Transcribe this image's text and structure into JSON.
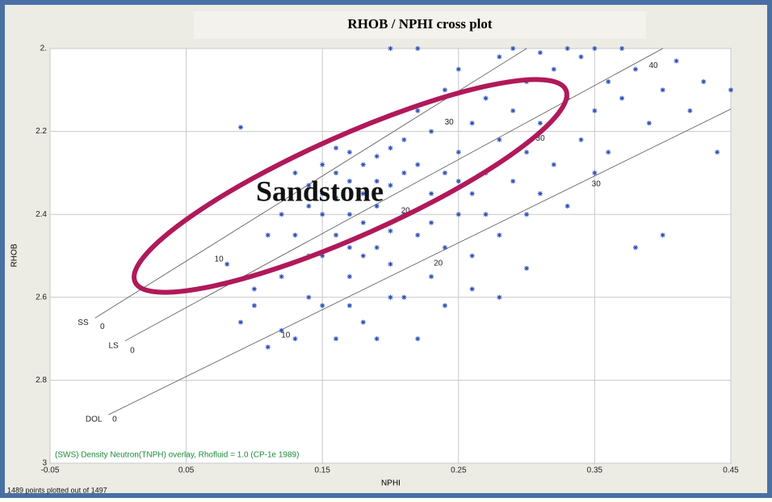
{
  "chart_data": {
    "type": "scatter",
    "title": "RHOB / NPHI cross plot",
    "x_label": "NPHI",
    "y_label": "RHOB",
    "xlim": [
      -0.05,
      0.45
    ],
    "xticks": [
      -0.05,
      0.05,
      0.15,
      0.25,
      0.35,
      0.45
    ],
    "ylim": [
      2,
      3
    ],
    "y_inverted": true,
    "yticks": [
      {
        "value": 2,
        "label": "2."
      },
      2.2,
      2.4,
      2.6,
      2.8,
      3
    ],
    "grid": true,
    "color": "#2b4fb8",
    "x": [
      0.09,
      0.1,
      0.11,
      0.12,
      0.13,
      0.13,
      0.14,
      0.14,
      0.15,
      0.15,
      0.15,
      0.16,
      0.16,
      0.16,
      0.17,
      0.17,
      0.17,
      0.17,
      0.18,
      0.18,
      0.18,
      0.18,
      0.19,
      0.19,
      0.19,
      0.2,
      0.2,
      0.2,
      0.21,
      0.21,
      0.21,
      0.22,
      0.22,
      0.22,
      0.23,
      0.23,
      0.23,
      0.24,
      0.24,
      0.24,
      0.25,
      0.25,
      0.25,
      0.26,
      0.26,
      0.26,
      0.27,
      0.27,
      0.28,
      0.28,
      0.28,
      0.29,
      0.29,
      0.3,
      0.3,
      0.3,
      0.31,
      0.31,
      0.32,
      0.32,
      0.33,
      0.33,
      0.34,
      0.34,
      0.35,
      0.35,
      0.36,
      0.36,
      0.37,
      0.38,
      0.38,
      0.39,
      0.4,
      0.4,
      0.41,
      0.42,
      0.43,
      0.44,
      0.45,
      0.08,
      0.09,
      0.1,
      0.11,
      0.12,
      0.13,
      0.14,
      0.15,
      0.16,
      0.17,
      0.19,
      0.2,
      0.22,
      0.24,
      0.26,
      0.28,
      0.3,
      0.12,
      0.14,
      0.16,
      0.18,
      0.2,
      0.21,
      0.19,
      0.17,
      0.15,
      0.23,
      0.25,
      0.27,
      0.29,
      0.31,
      0.33,
      0.22,
      0.2,
      0.35,
      0.37
    ],
    "values": [
      2.19,
      2.62,
      2.72,
      2.55,
      2.45,
      2.7,
      2.33,
      2.5,
      2.28,
      2.4,
      2.62,
      2.3,
      2.36,
      2.45,
      2.25,
      2.32,
      2.4,
      2.55,
      2.28,
      2.35,
      2.42,
      2.66,
      2.26,
      2.38,
      2.48,
      2.24,
      2.33,
      2.52,
      2.3,
      2.4,
      2.6,
      2.15,
      2.28,
      2.45,
      2.2,
      2.35,
      2.55,
      2.1,
      2.3,
      2.48,
      2.05,
      2.25,
      2.4,
      2.18,
      2.35,
      2.58,
      2.12,
      2.3,
      2.02,
      2.22,
      2.45,
      2.15,
      2.32,
      2.08,
      2.25,
      2.4,
      2.18,
      2.35,
      2.05,
      2.28,
      2.12,
      2.38,
      2.02,
      2.22,
      2.15,
      2.3,
      2.08,
      2.25,
      2.12,
      2.05,
      2.48,
      2.18,
      2.1,
      2.45,
      2.03,
      2.15,
      2.08,
      2.25,
      2.1,
      2.52,
      2.66,
      2.58,
      2.45,
      2.68,
      2.3,
      2.6,
      2.5,
      2.7,
      2.62,
      2.7,
      2.6,
      2.7,
      2.62,
      2.5,
      2.6,
      2.53,
      2.4,
      2.38,
      2.24,
      2.5,
      2.44,
      2.22,
      2.32,
      2.48,
      2.35,
      2.42,
      2.32,
      2.4,
      2.0,
      2.01,
      2.0,
      2.0,
      2.0,
      2.0,
      2.0
    ],
    "overlay_color": "#555555",
    "overlays": [
      {
        "name": "SS",
        "x": [
          -0.017,
          0.3
        ],
        "y": [
          2.65,
          2.0
        ],
        "porosity": [
          {
            "value": 0,
            "x": -0.015,
            "y": 2.66
          },
          {
            "value": 10,
            "x": 0.069,
            "y": 2.497
          },
          {
            "value": 30,
            "x": 0.238,
            "y": 2.166
          }
        ]
      },
      {
        "name": "LS",
        "x": [
          0.005,
          0.4
        ],
        "y": [
          2.705,
          2.0
        ],
        "porosity": [
          {
            "value": 0,
            "x": 0.007,
            "y": 2.717
          },
          {
            "value": 20,
            "x": 0.206,
            "y": 2.38
          },
          {
            "value": 30,
            "x": 0.305,
            "y": 2.205
          },
          {
            "value": 40,
            "x": 0.388,
            "y": 2.03
          }
        ]
      },
      {
        "name": "DOL",
        "x": [
          -0.007,
          0.45
        ],
        "y": [
          2.883,
          2.146
        ],
        "porosity": [
          {
            "value": 0,
            "x": -0.006,
            "y": 2.883
          },
          {
            "value": 10,
            "x": 0.118,
            "y": 2.68
          },
          {
            "value": 20,
            "x": 0.23,
            "y": 2.507
          },
          {
            "value": 30,
            "x": 0.346,
            "y": 2.316
          }
        ]
      }
    ],
    "annotation": "Sandstone",
    "overlay_note": "(SWS) Density Neutron(TNPH) overlay, Rhofluid = 1.0 (CP-1e 1989)",
    "status": "1489 points plotted out of 1497"
  }
}
